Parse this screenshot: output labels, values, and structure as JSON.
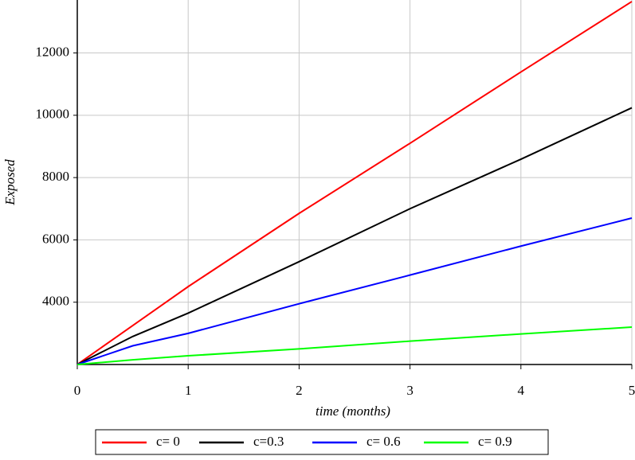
{
  "chart_data": {
    "type": "line",
    "xlabel": "time (months)",
    "ylabel": "Exposed",
    "x": [
      0,
      0.5,
      1,
      2,
      3,
      4,
      5
    ],
    "series": [
      {
        "name": "c= 0",
        "color": "#ff0000",
        "values": [
          2000,
          3250,
          4500,
          6850,
          9100,
          11390,
          13650
        ]
      },
      {
        "name": "c=0.3",
        "color": "#000000",
        "values": [
          2000,
          2900,
          3650,
          5300,
          7000,
          8590,
          10240
        ]
      },
      {
        "name": "c= 0.6",
        "color": "#0000ff",
        "values": [
          2000,
          2600,
          3000,
          3950,
          4870,
          5800,
          6700
        ]
      },
      {
        "name": "c= 0.9",
        "color": "#00ff00",
        "values": [
          2000,
          2150,
          2280,
          2500,
          2750,
          2980,
          3200
        ]
      }
    ],
    "xlim": [
      0,
      5
    ],
    "xticks": [
      0,
      1,
      2,
      3,
      4,
      5
    ],
    "ylim": [
      2000,
      13700
    ],
    "yticks": [
      4000,
      6000,
      8000,
      10000,
      12000
    ],
    "grid": true,
    "legend": "bottom"
  }
}
